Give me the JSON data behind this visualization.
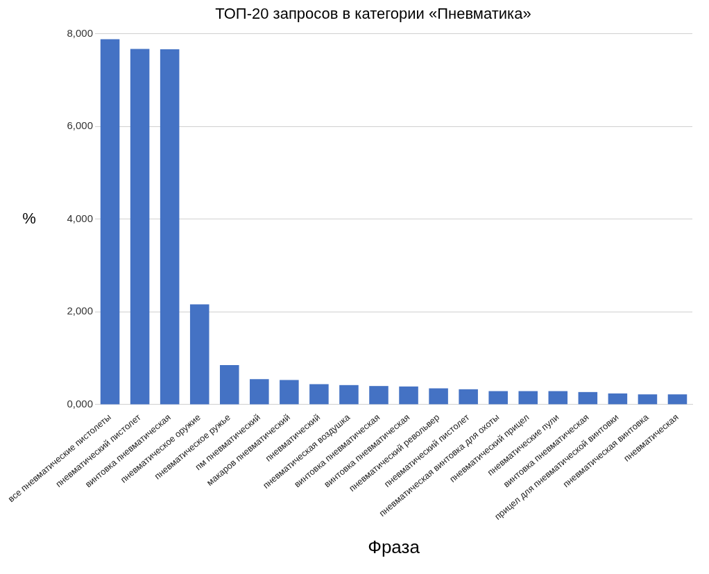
{
  "chart_data": {
    "type": "bar",
    "title": "ТОП-20 запросов в категории «Пневматика»",
    "xlabel": "Фраза",
    "ylabel": "%",
    "categories": [
      "все пневматические пистолеты",
      "пневматический пистолет",
      "винтовка пневматическая",
      "пневматическое оружие",
      "пневматическое ружье",
      "пм пневматический",
      "макаров пневматический",
      "пневматический",
      "пневматическая воздушка",
      "винтовка пневматическая",
      "винтовка пневматическая",
      "пневматический револьвер",
      "пневматический пистолет",
      "пневматическая винтовка для охоты",
      "пневматический прицел",
      "пневматические пули",
      "винтовка пневматическая",
      "прицел для пневматической винтовки",
      "пневматическая винтовка",
      "пневматическая"
    ],
    "values": [
      7880,
      7670,
      7660,
      2160,
      850,
      550,
      530,
      440,
      420,
      400,
      390,
      350,
      330,
      290,
      290,
      290,
      270,
      240,
      220,
      220
    ],
    "color": "#4472c4",
    "ylim": [
      0,
      8000
    ],
    "yticks": [
      {
        "value": 0,
        "label": "0,000"
      },
      {
        "value": 2000,
        "label": "2,000"
      },
      {
        "value": 4000,
        "label": "4,000"
      },
      {
        "value": 6000,
        "label": "6,000"
      },
      {
        "value": 8000,
        "label": "8,000"
      }
    ],
    "grid": "y"
  }
}
